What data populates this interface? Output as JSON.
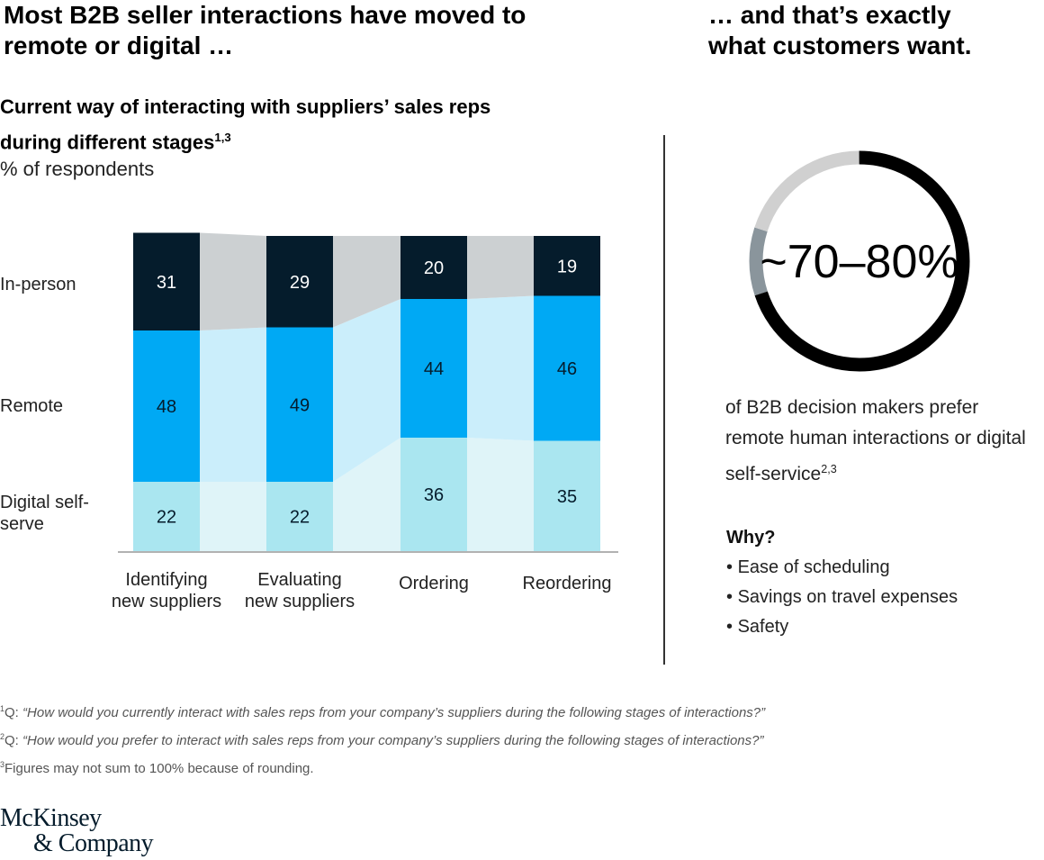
{
  "left_title": "Most B2B seller interactions have moved to remote or digital …",
  "right_title": "… and that’s exactly what customers want.",
  "chart_title": "Current way of interacting with suppliers’ sales reps during different stages",
  "chart_title_sup": "1,3",
  "chart_unit": "% of respondents",
  "colors": {
    "in_person": "#051c2c",
    "remote": "#00a9f4",
    "digital": "#aae6f0",
    "in_person_connector": "#ccd0d2",
    "remote_connector": "#cbeefb",
    "digital_connector": "#dff4f8",
    "donut_main": "#000000",
    "donut_mid": "#8a959c",
    "donut_rest": "#d0d0d0"
  },
  "chart_data": {
    "type": "bar",
    "stacked": true,
    "categories": [
      "Identifying new suppliers",
      "Evaluating new suppliers",
      "Ordering",
      "Reordering"
    ],
    "series": [
      {
        "name": "Digital self-serve",
        "values": [
          22,
          22,
          36,
          35
        ]
      },
      {
        "name": "Remote",
        "values": [
          48,
          49,
          44,
          46
        ]
      },
      {
        "name": "In-person",
        "values": [
          31,
          29,
          20,
          19
        ]
      }
    ],
    "ylabel": "% of respondents",
    "ylim": [
      0,
      101
    ],
    "grid": false,
    "legend": "left (row labels)"
  },
  "row_labels": {
    "in_person": "In-person",
    "remote": "Remote",
    "digital": "Digital self-serve"
  },
  "category_labels": [
    [
      "Identifying",
      "new suppliers"
    ],
    [
      "Evaluating",
      "new suppliers"
    ],
    [
      "Ordering"
    ],
    [
      "Reordering"
    ]
  ],
  "donut": {
    "label": "~70–80%",
    "main_fraction": 0.7,
    "mid_fraction": 0.1,
    "rest_fraction": 0.2
  },
  "right_text": "of B2B decision makers prefer remote human interactions or digital self-service",
  "right_text_sup": "2,3",
  "why_heading": "Why?",
  "why_items": [
    "Ease of scheduling",
    "Savings on travel expenses",
    "Safety"
  ],
  "footnotes": [
    {
      "num": "1",
      "prefix": "Q: ",
      "text": "“How would you currently interact with sales reps from your company’s suppliers during the following stages of interactions?”"
    },
    {
      "num": "2",
      "prefix": "Q: ",
      "text": "“How would you prefer to interact with sales reps from your company’s suppliers during the following stages of interactions?”"
    },
    {
      "num": "3",
      "prefix": "",
      "text": "Figures may not sum to 100% because of rounding."
    }
  ],
  "logo": {
    "line1": "McKinsey",
    "line2": "& Company"
  }
}
